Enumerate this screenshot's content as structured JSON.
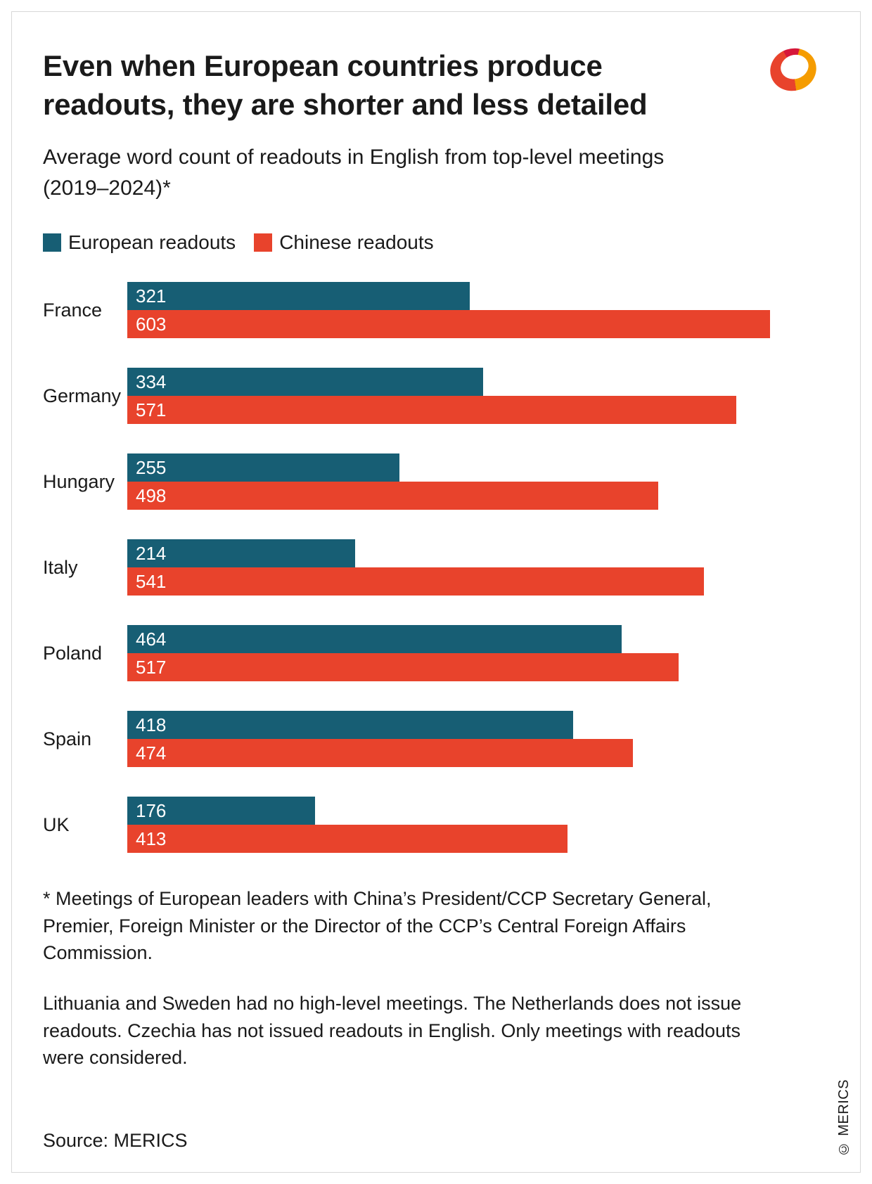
{
  "header": {
    "title": "Even when European countries produce readouts, they are shorter and less detailed",
    "subtitle": "Average word count of readouts in English from top-level meetings (2019–2024)*"
  },
  "legend": [
    {
      "label": "European readouts",
      "color": "#175e74"
    },
    {
      "label": "Chinese readouts",
      "color": "#e8432c"
    }
  ],
  "chart_data": {
    "type": "bar",
    "orientation": "horizontal",
    "title": "Even when European countries produce readouts, they are shorter and less detailed",
    "subtitle": "Average word count of readouts in English from top-level meetings (2019–2024)*",
    "categories": [
      "France",
      "Germany",
      "Hungary",
      "Italy",
      "Poland",
      "Spain",
      "UK"
    ],
    "series": [
      {
        "name": "European readouts",
        "color": "#175e74",
        "values": [
          321,
          334,
          255,
          214,
          464,
          418,
          176
        ]
      },
      {
        "name": "Chinese readouts",
        "color": "#e8432c",
        "values": [
          603,
          571,
          498,
          541,
          517,
          474,
          413
        ]
      }
    ],
    "xlim": [
      0,
      620
    ],
    "value_labels": "inside-start",
    "grid": false,
    "legend_position": "top-left"
  },
  "footnotes": {
    "note1": "* Meetings of European leaders with China’s President/CCP Secretary General, Premier, Foreign Minister or the Director of the CCP’s Central Foreign Affairs Commission.",
    "note2": "Lithuania and Sweden had no high-level meetings. The Netherlands does not issue readouts. Czechia has not issued readouts in English. Only meetings with readouts were considered."
  },
  "source": "Source: MERICS",
  "copyright": "© MERICS",
  "colors": {
    "european": "#175e74",
    "chinese": "#e8432c",
    "logo_orange": "#f59c00",
    "logo_red": "#e8432c",
    "text": "#1a1a1a"
  }
}
